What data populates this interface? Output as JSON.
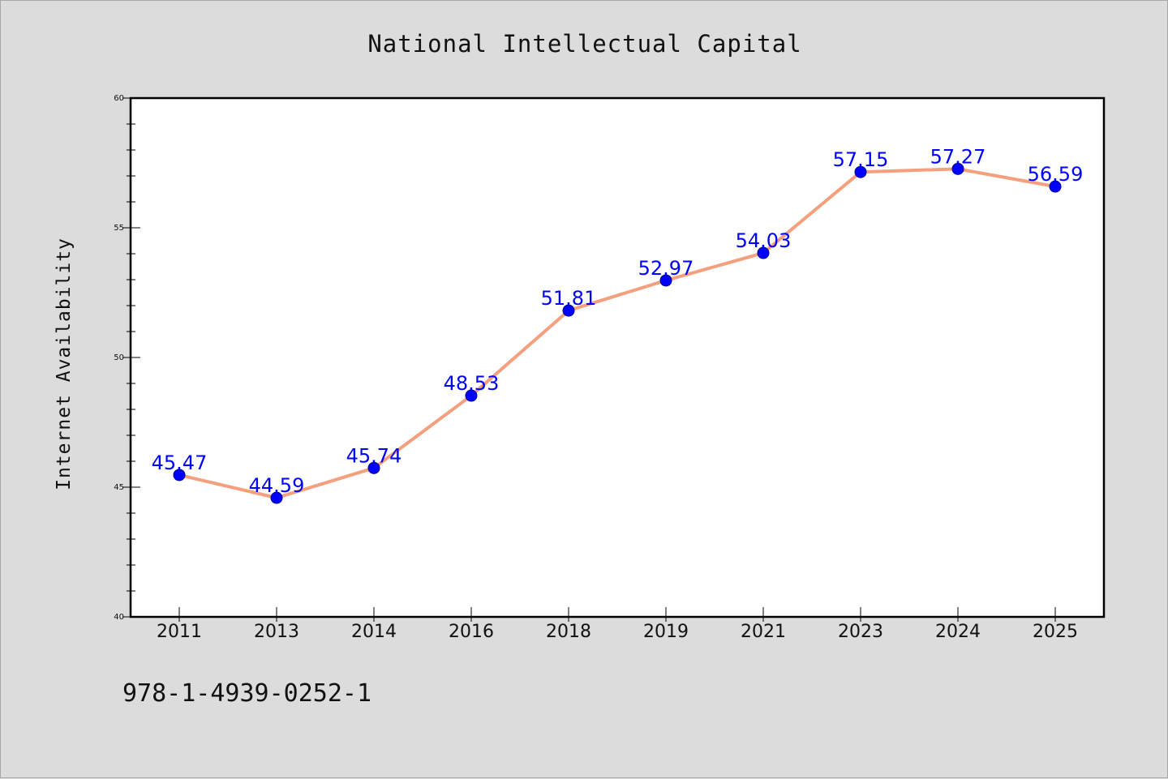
{
  "chart_data": {
    "type": "line",
    "title": "National Intellectual Capital",
    "xlabel": "",
    "ylabel": "Internet Availability",
    "categories": [
      "2011",
      "2013",
      "2014",
      "2016",
      "2018",
      "2019",
      "2021",
      "2023",
      "2024",
      "2025"
    ],
    "series": [
      {
        "values": [
          45.47,
          44.59,
          45.74,
          48.53,
          51.81,
          52.97,
          54.03,
          57.15,
          57.27,
          56.59
        ],
        "labels": [
          "45.47",
          "44.59",
          "45.74",
          "48.53",
          "51.81",
          "52.97",
          "54.03",
          "57.15",
          "57.27",
          "56.59"
        ]
      }
    ],
    "ylim": [
      40,
      60
    ],
    "yticks": [
      "40",
      "45",
      "50",
      "55",
      "60"
    ],
    "grid": false,
    "colors": {
      "line": "#f4a07e",
      "marker": "#0000ff",
      "label": "#0000ff"
    }
  },
  "footer_text": "978-1-4939-0252-1"
}
